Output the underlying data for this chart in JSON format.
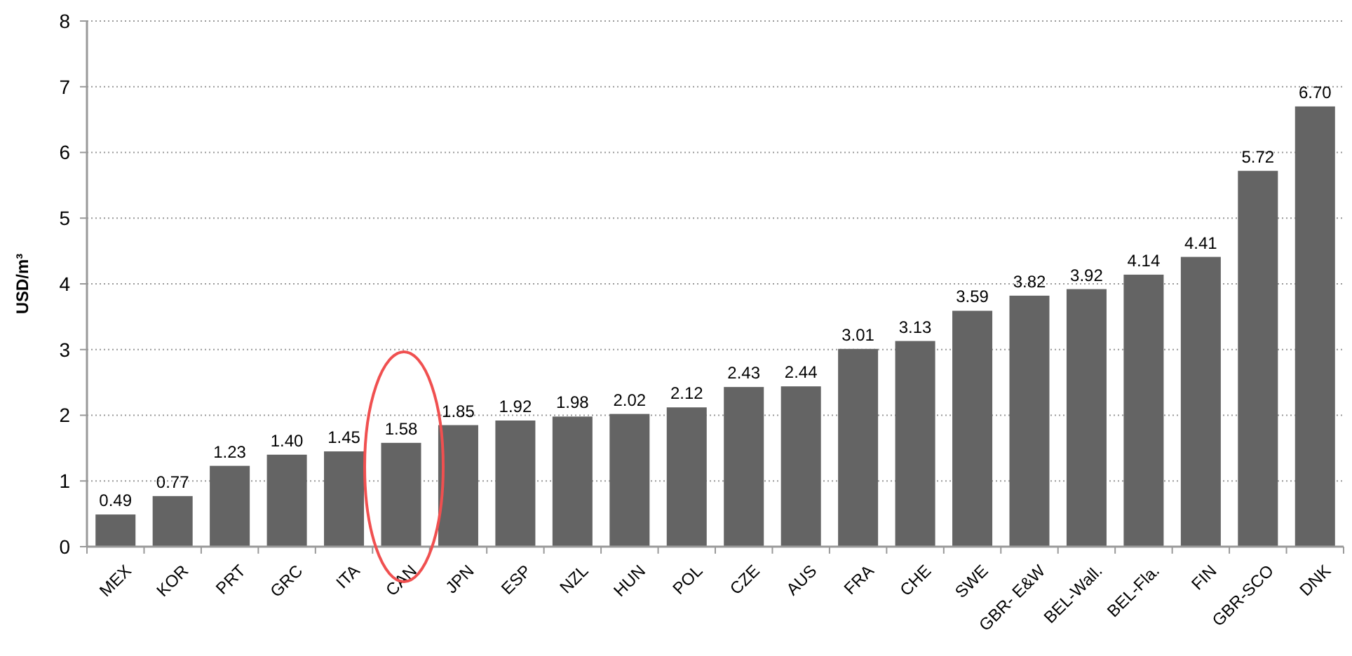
{
  "chart_data": {
    "type": "bar",
    "ylabel": "USD/m³",
    "categories": [
      "MEX",
      "KOR",
      "PRT",
      "GRC",
      "ITA",
      "CAN",
      "JPN",
      "ESP",
      "NZL",
      "HUN",
      "POL",
      "CZE",
      "AUS",
      "FRA",
      "CHE",
      "SWE",
      "GBR- E&W",
      "BEL-Wall.",
      "BEL-Fla.",
      "FIN",
      "GBR-SCO",
      "DNK"
    ],
    "values": [
      0.49,
      0.77,
      1.23,
      1.4,
      1.45,
      1.58,
      1.85,
      1.92,
      1.98,
      2.02,
      2.12,
      2.43,
      2.44,
      3.01,
      3.13,
      3.59,
      3.82,
      3.92,
      4.14,
      4.41,
      5.72,
      6.7
    ],
    "value_labels": [
      "0.49",
      "0.77",
      "1.23",
      "1.40",
      "1.45",
      "1.58",
      "1.85",
      "1.92",
      "1.98",
      "2.02",
      "2.12",
      "2.43",
      "2.44",
      "3.01",
      "3.13",
      "3.59",
      "3.82",
      "3.92",
      "4.14",
      "4.41",
      "5.72",
      "6.70"
    ],
    "color": "#646464",
    "ylim": [
      0,
      8
    ],
    "yticks": [
      0,
      1,
      2,
      3,
      4,
      5,
      6,
      7,
      8
    ],
    "grid": "y"
  }
}
